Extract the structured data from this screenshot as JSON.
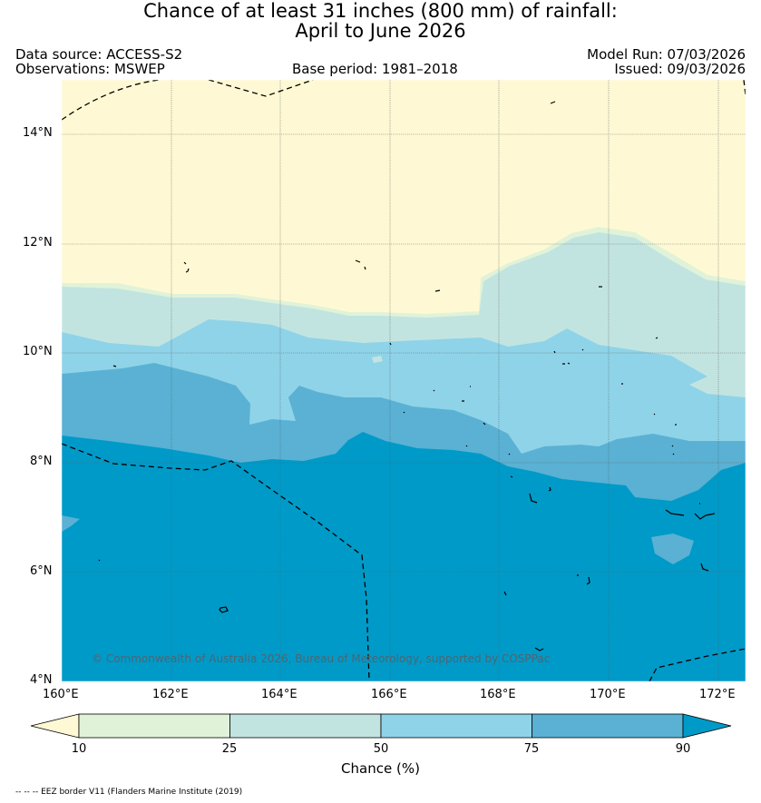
{
  "header": {
    "title_line1": "Chance of at least 31 inches (800  mm) of rainfall:",
    "title_line2": "April to June 2026",
    "data_source": "Data source: ACCESS-S2",
    "observations": "Observations: MSWEP",
    "base_period": "Base period: 1981–2018",
    "model_run": "Model Run: 07/03/2026",
    "issued": "Issued: 09/03/2026"
  },
  "map": {
    "lat_labels": [
      "14°N",
      "12°N",
      "10°N",
      "8°N",
      "6°N",
      "4°N"
    ],
    "lon_labels": [
      "160°E",
      "162°E",
      "164°E",
      "166°E",
      "168°E",
      "170°E",
      "172°E"
    ],
    "copyright": "© Commonwealth of Australia 2026, Bureau of Meteorology, supported by COSPPac",
    "footnote": "-- -- -- EEZ border V11 (Flanders Marine Institute (2019)",
    "extent": {
      "lon_min": 160,
      "lon_max": 172.5,
      "lat_min": 4,
      "lat_max": 15
    }
  },
  "legend": {
    "title": "Chance (%)",
    "ticks": [
      "10",
      "25",
      "50",
      "75",
      "90"
    ],
    "bins": [
      {
        "range": "<10",
        "color": "#fef9d4"
      },
      {
        "range": "10-25",
        "color": "#e0f3d8"
      },
      {
        "range": "25-50",
        "color": "#c2e4e1"
      },
      {
        "range": "50-75",
        "color": "#8fd3e8"
      },
      {
        "range": "75-90",
        "color": "#5ab1d3"
      },
      {
        "range": ">90",
        "color": "#009ac8"
      }
    ]
  }
}
